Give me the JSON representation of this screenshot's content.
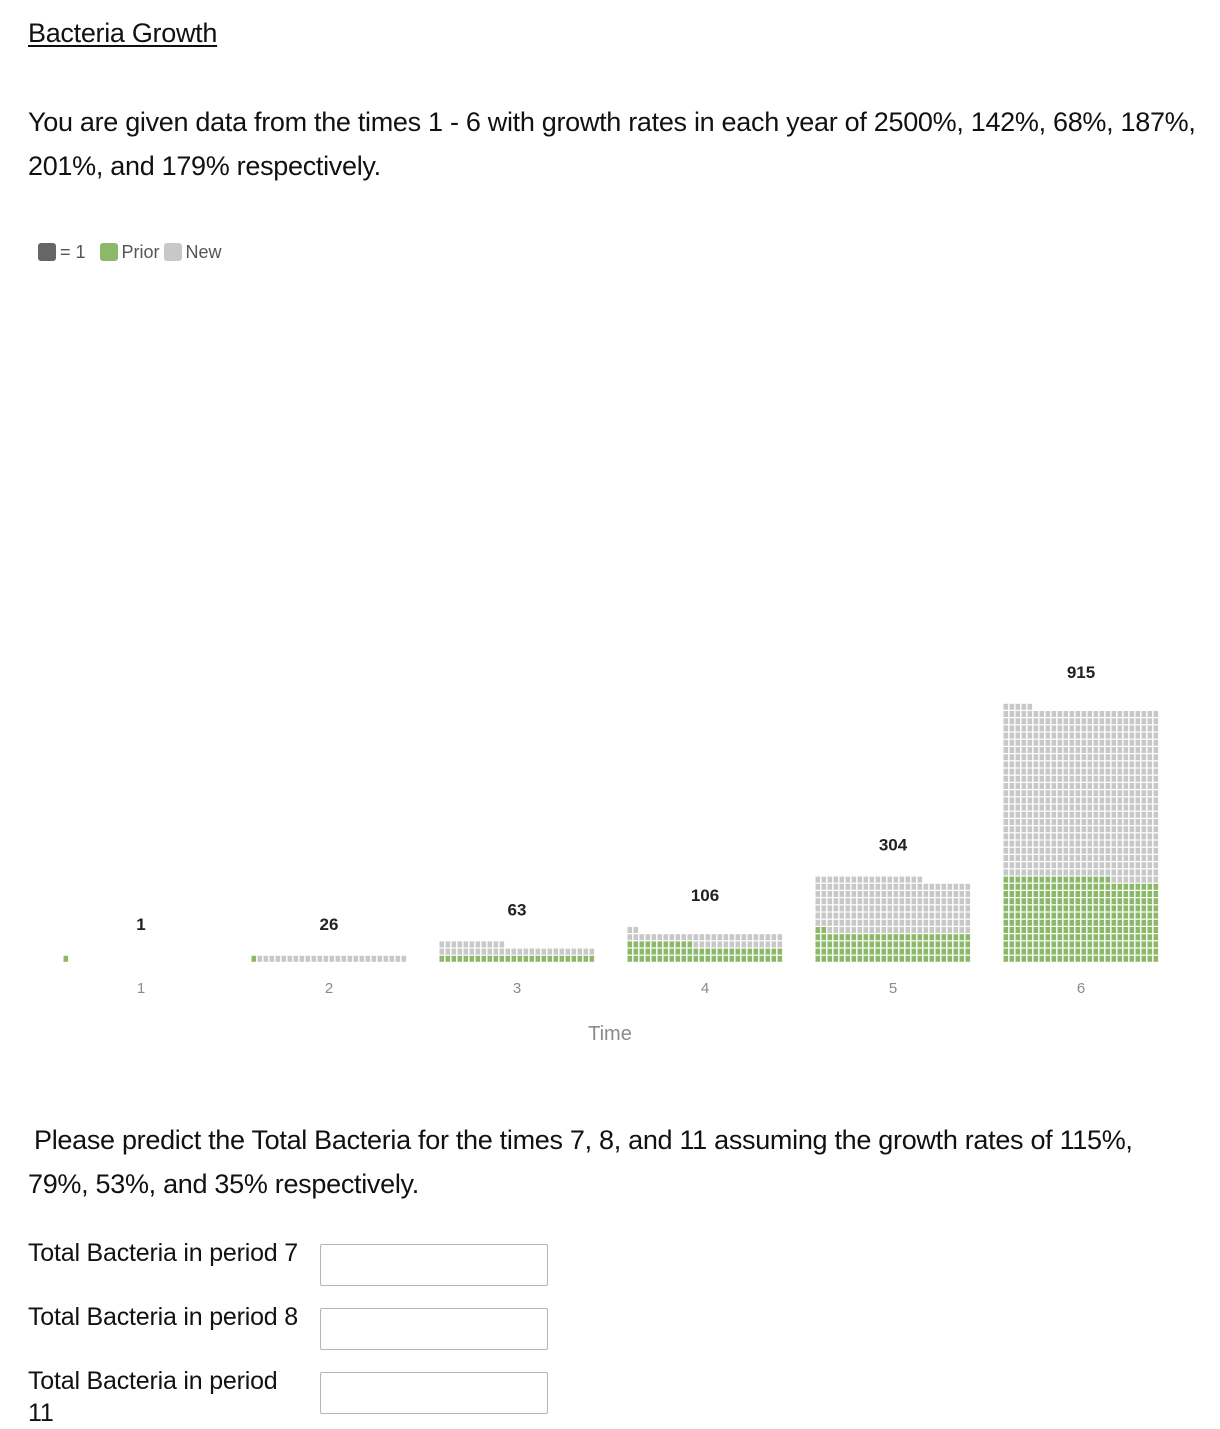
{
  "page": {
    "title": "Bacteria Growth",
    "intro": "You are given data from the times 1 - 6 with growth rates in each year of 2500%, 142%, 68%, 187%, 201%, and 179% respectively.",
    "prediction_prompt": "Please predict the Total Bacteria for the times 7, 8, and 11 assuming the growth rates of 115%, 79%, 53%, and 35% respectively."
  },
  "legend": {
    "unit_label": "= 1",
    "prior_label": "Prior",
    "new_label": "New",
    "unit_color": "#666666",
    "prior_color": "#8cb86a",
    "new_color": "#c8c8c8"
  },
  "chart_data": {
    "type": "bar",
    "stacked": true,
    "unit": 1,
    "categories": [
      "1",
      "2",
      "3",
      "4",
      "5",
      "6"
    ],
    "totals": [
      1,
      26,
      63,
      106,
      304,
      915
    ],
    "series": [
      {
        "name": "Prior",
        "color": "#8cb86a",
        "values": [
          1,
          1,
          26,
          63,
          106,
          304
        ]
      },
      {
        "name": "New",
        "color": "#c8c8c8",
        "values": [
          0,
          25,
          37,
          43,
          198,
          611
        ]
      }
    ],
    "xlabel": "Time",
    "legend_position": "top-left",
    "grid": false
  },
  "answers": [
    {
      "label": "Total Bacteria in period 7",
      "value": ""
    },
    {
      "label": "Total Bacteria in period 8",
      "value": ""
    },
    {
      "label": "Total Bacteria in period 11",
      "value": ""
    }
  ]
}
